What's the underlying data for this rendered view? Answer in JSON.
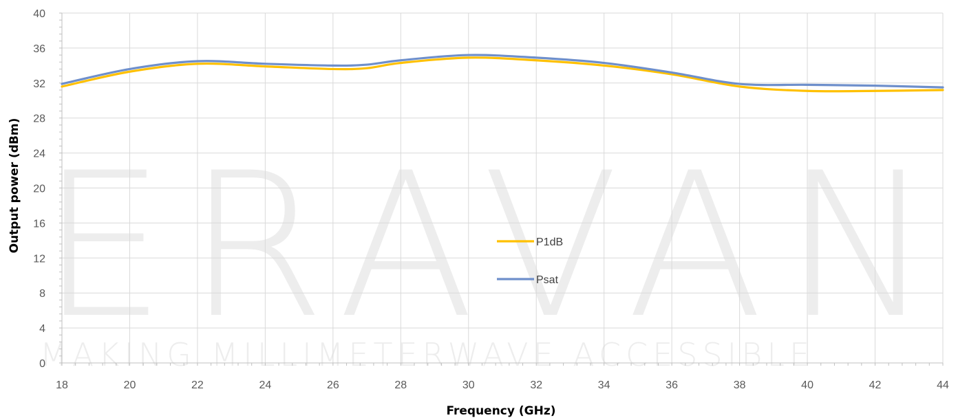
{
  "chart_data": {
    "type": "line",
    "xlabel": "Frequency (GHz)",
    "ylabel": "Output power (dBm)",
    "xlim": [
      18,
      44
    ],
    "ylim": [
      0,
      40
    ],
    "xticks": [
      18,
      20,
      22,
      24,
      26,
      28,
      30,
      32,
      34,
      36,
      38,
      40,
      42,
      44
    ],
    "yticks": [
      0,
      4,
      8,
      12,
      16,
      20,
      24,
      28,
      32,
      36,
      40
    ],
    "grid": true,
    "legend_position": "center",
    "series": [
      {
        "name": "P1dB",
        "color": "#FFC000",
        "x": [
          18,
          20,
          22,
          24,
          26,
          27,
          28,
          30,
          32,
          34,
          36,
          38,
          40,
          42,
          44
        ],
        "y": [
          31.6,
          33.3,
          34.2,
          33.9,
          33.6,
          33.7,
          34.3,
          34.9,
          34.6,
          34.0,
          33.0,
          31.6,
          31.1,
          31.1,
          31.2
        ]
      },
      {
        "name": "Psat",
        "color": "#6E8FCB",
        "x": [
          18,
          20,
          22,
          24,
          26,
          27,
          28,
          30,
          32,
          34,
          36,
          38,
          40,
          42,
          44
        ],
        "y": [
          31.9,
          33.6,
          34.5,
          34.2,
          34.0,
          34.1,
          34.6,
          35.2,
          34.9,
          34.3,
          33.2,
          31.9,
          31.8,
          31.7,
          31.5
        ]
      }
    ]
  },
  "watermark": {
    "logo_text": "ERAVANT",
    "tagline": "MAKING MILLIMETERWAVE ACCESSIBLE"
  }
}
